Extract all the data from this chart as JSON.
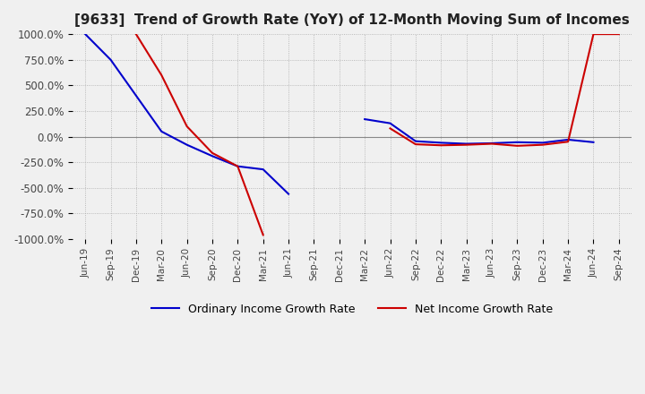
{
  "title": "[9633]  Trend of Growth Rate (YoY) of 12-Month Moving Sum of Incomes",
  "title_fontsize": 11,
  "ylim": [
    -1000,
    1000
  ],
  "yticks": [
    -1000,
    -750,
    -500,
    -250,
    0,
    250,
    500,
    750,
    1000
  ],
  "yticklabels": [
    "-1000.0%",
    "-750.0%",
    "-500.0%",
    "-250.0%",
    "0.0%",
    "250.0%",
    "500.0%",
    "750.0%",
    "1000.0%"
  ],
  "ordinary_color": "#0000CC",
  "net_color": "#CC0000",
  "background_color": "#F0F0F0",
  "grid_color": "#AAAAAA",
  "legend_labels": [
    "Ordinary Income Growth Rate",
    "Net Income Growth Rate"
  ],
  "x_labels": [
    "Jun-19",
    "Sep-19",
    "Dec-19",
    "Mar-20",
    "Jun-20",
    "Sep-20",
    "Dec-20",
    "Mar-21",
    "Jun-21",
    "Sep-21",
    "Dec-21",
    "Mar-22",
    "Jun-22",
    "Sep-22",
    "Dec-22",
    "Mar-23",
    "Jun-23",
    "Sep-23",
    "Dec-23",
    "Mar-24",
    "Jun-24",
    "Sep-24"
  ],
  "ordinary_data": [
    [
      "Jun-19",
      1000
    ],
    [
      "Sep-19",
      750
    ],
    [
      "Dec-19",
      400
    ],
    [
      "Mar-20",
      50
    ],
    [
      "Jun-20",
      -80
    ],
    [
      "Sep-20",
      -190
    ],
    [
      "Dec-20",
      -290
    ],
    [
      "Mar-21",
      -320
    ],
    [
      "Jun-21",
      -560
    ],
    [
      "Sep-21",
      null
    ],
    [
      "Dec-21",
      null
    ],
    [
      "Mar-22",
      170
    ],
    [
      "Jun-22",
      130
    ],
    [
      "Sep-22",
      -45
    ],
    [
      "Dec-22",
      -60
    ],
    [
      "Mar-23",
      -70
    ],
    [
      "Jun-23",
      -65
    ],
    [
      "Sep-23",
      -55
    ],
    [
      "Dec-23",
      -60
    ],
    [
      "Mar-24",
      -30
    ],
    [
      "Jun-24",
      -55
    ],
    [
      "Sep-24",
      null
    ]
  ],
  "net_data": [
    [
      "Jun-19",
      null
    ],
    [
      "Sep-19",
      null
    ],
    [
      "Dec-19",
      1000
    ],
    [
      "Mar-20",
      600
    ],
    [
      "Jun-20",
      100
    ],
    [
      "Sep-20",
      -160
    ],
    [
      "Dec-20",
      -290
    ],
    [
      "Mar-21",
      -960
    ],
    [
      "Jun-21",
      null
    ],
    [
      "Sep-21",
      null
    ],
    [
      "Dec-21",
      null
    ],
    [
      "Mar-22",
      null
    ],
    [
      "Jun-22",
      80
    ],
    [
      "Sep-22",
      -75
    ],
    [
      "Dec-22",
      -85
    ],
    [
      "Mar-23",
      -80
    ],
    [
      "Jun-23",
      -70
    ],
    [
      "Sep-23",
      -90
    ],
    [
      "Dec-23",
      -80
    ],
    [
      "Mar-24",
      -50
    ],
    [
      "Jun-24",
      1000
    ],
    [
      "Sep-24",
      1000
    ]
  ]
}
